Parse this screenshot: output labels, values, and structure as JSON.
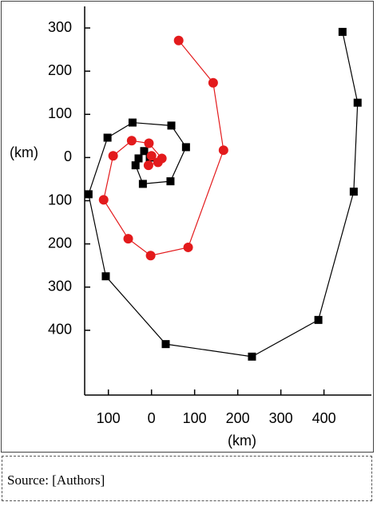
{
  "chart_data": {
    "type": "line",
    "xlabel": "(km)",
    "ylabel": "(km)",
    "xlim": [
      -155,
      510
    ],
    "ylim": [
      -550,
      350
    ],
    "xticks": [
      {
        "value": -100,
        "label": "100"
      },
      0,
      100,
      200,
      300,
      400
    ],
    "yticks": [
      300,
      200,
      100,
      0,
      {
        "value": -100,
        "label": "100"
      },
      {
        "value": -200,
        "label": "200"
      },
      {
        "value": -300,
        "label": "300"
      },
      {
        "value": -400,
        "label": "400"
      }
    ],
    "series": [
      {
        "color": "#000000",
        "marker": "square",
        "x": [
          443,
          478,
          469,
          387,
          233,
          33,
          -106,
          -146,
          -102,
          -44,
          46,
          80,
          44,
          -20,
          -37,
          -30,
          -17,
          -4
        ],
        "values": [
          291,
          127,
          -79,
          -376,
          -461,
          -432,
          -275,
          -85,
          46,
          81,
          74,
          24,
          -55,
          -61,
          -18,
          -2,
          15,
          0
        ]
      },
      {
        "color": "#e31a1c",
        "marker": "circle",
        "x": [
          63,
          143,
          167,
          85,
          -2,
          -54,
          -111,
          -89,
          -46,
          -6,
          24,
          15,
          -7,
          0
        ],
        "values": [
          271,
          173,
          17,
          -208,
          -227,
          -188,
          -98,
          4,
          39,
          33,
          -2,
          -11,
          -18,
          4
        ]
      }
    ]
  },
  "caption": "Source: [Authors]"
}
